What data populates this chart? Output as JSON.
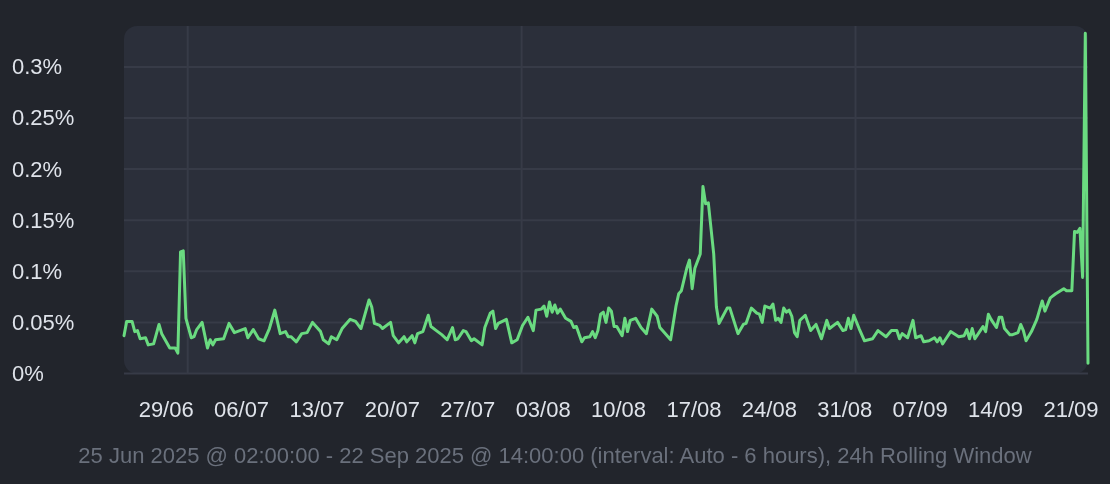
{
  "chart_data": {
    "type": "line",
    "xlabel": "25 Jun 2025 @ 02:00:00 - 22 Sep 2025 @ 14:00:00 (interval: Auto - 6 hours), 24h Rolling Window",
    "xlim": [
      "2025-06-25T02:00",
      "2025-09-22T14:00"
    ],
    "xticks": [
      {
        "value": "2025-06-29",
        "label": "29/06"
      },
      {
        "value": "2025-07-01",
        "label": null
      },
      {
        "value": "2025-07-06",
        "label": "06/07"
      },
      {
        "value": "2025-07-13",
        "label": "13/07"
      },
      {
        "value": "2025-07-20",
        "label": "20/07"
      },
      {
        "value": "2025-07-27",
        "label": "27/07"
      },
      {
        "value": "2025-08-01",
        "label": null
      },
      {
        "value": "2025-08-03",
        "label": "03/08"
      },
      {
        "value": "2025-08-10",
        "label": "10/08"
      },
      {
        "value": "2025-08-17",
        "label": "17/08"
      },
      {
        "value": "2025-08-24",
        "label": "24/08"
      },
      {
        "value": "2025-08-31",
        "label": "31/08"
      },
      {
        "value": "2025-09-01",
        "label": null
      },
      {
        "value": "2025-09-07",
        "label": "07/09"
      },
      {
        "value": "2025-09-14",
        "label": "14/09"
      },
      {
        "value": "2025-09-21",
        "label": "21/09"
      }
    ],
    "ylim": [
      0,
      0.34
    ],
    "yticks": [
      {
        "value": 0,
        "label": "0%"
      },
      {
        "value": 0.05,
        "label": "0.05%"
      },
      {
        "value": 0.1,
        "label": "0.1%"
      },
      {
        "value": 0.15,
        "label": "0.15%"
      },
      {
        "value": 0.2,
        "label": "0.2%"
      },
      {
        "value": 0.25,
        "label": "0.25%"
      },
      {
        "value": 0.3,
        "label": "0.3%"
      }
    ],
    "grid": true,
    "series": [
      {
        "color": "#6adb80",
        "x": [
          "2025-06-25T02:00",
          "2025-06-25T08:00",
          "2025-06-25T20:00",
          "2025-06-26T02:00",
          "2025-06-26T08:00",
          "2025-06-26T14:00",
          "2025-06-27T02:00",
          "2025-06-27T08:00",
          "2025-06-27T20:00",
          "2025-06-28T08:00",
          "2025-06-28T14:00",
          "2025-06-29T08:00",
          "2025-06-29T20:00",
          "2025-06-30T02:00",
          "2025-06-30T08:00",
          "2025-06-30T14:00",
          "2025-06-30T20:00",
          "2025-07-01T08:00",
          "2025-07-01T14:00",
          "2025-07-01T20:00",
          "2025-07-02T08:00",
          "2025-07-02T20:00",
          "2025-07-03T02:00",
          "2025-07-03T08:00",
          "2025-07-03T14:00",
          "2025-07-04T08:00",
          "2025-07-04T20:00",
          "2025-07-05T08:00",
          "2025-07-06T08:00",
          "2025-07-06T14:00",
          "2025-07-07T02:00",
          "2025-07-07T14:00",
          "2025-07-08T02:00",
          "2025-07-08T14:00",
          "2025-07-09T02:00",
          "2025-07-09T14:00",
          "2025-07-10T02:00",
          "2025-07-10T08:00",
          "2025-07-10T14:00",
          "2025-07-11T02:00",
          "2025-07-11T14:00",
          "2025-07-12T02:00",
          "2025-07-12T14:00",
          "2025-07-13T08:00",
          "2025-07-13T14:00",
          "2025-07-14T02:00",
          "2025-07-14T08:00",
          "2025-07-14T20:00",
          "2025-07-15T08:00",
          "2025-07-16T02:00",
          "2025-07-16T14:00",
          "2025-07-17T02:00",
          "2025-07-17T20:00",
          "2025-07-18T02:00",
          "2025-07-18T08:00",
          "2025-07-18T20:00",
          "2025-07-19T02:00",
          "2025-07-19T20:00",
          "2025-07-20T02:00",
          "2025-07-20T14:00",
          "2025-07-21T02:00",
          "2025-07-21T08:00",
          "2025-07-21T20:00",
          "2025-07-22T02:00",
          "2025-07-22T08:00",
          "2025-07-22T20:00",
          "2025-07-23T08:00",
          "2025-07-23T14:00",
          "2025-07-24T02:00",
          "2025-07-24T14:00",
          "2025-07-25T02:00",
          "2025-07-25T14:00",
          "2025-07-25T20:00",
          "2025-07-26T02:00",
          "2025-07-26T14:00",
          "2025-07-26T20:00",
          "2025-07-27T08:00",
          "2025-07-27T14:00",
          "2025-07-28T08:00",
          "2025-07-28T14:00",
          "2025-07-29T02:00",
          "2025-07-29T08:00",
          "2025-07-29T14:00",
          "2025-07-29T20:00",
          "2025-07-30T14:00",
          "2025-07-31T02:00",
          "2025-07-31T14:00",
          "2025-08-01T02:00",
          "2025-08-01T14:00",
          "2025-08-02T02:00",
          "2025-08-02T08:00",
          "2025-08-02T20:00",
          "2025-08-03T02:00",
          "2025-08-03T08:00",
          "2025-08-03T14:00",
          "2025-08-03T20:00",
          "2025-08-04T02:00",
          "2025-08-04T08:00",
          "2025-08-04T14:00",
          "2025-08-05T02:00",
          "2025-08-05T14:00",
          "2025-08-05T20:00",
          "2025-08-06T02:00",
          "2025-08-06T14:00",
          "2025-08-06T20:00",
          "2025-08-07T08:00",
          "2025-08-07T14:00",
          "2025-08-07T20:00",
          "2025-08-08T02:00",
          "2025-08-08T08:00",
          "2025-08-08T14:00",
          "2025-08-08T20:00",
          "2025-08-09T02:00",
          "2025-08-09T08:00",
          "2025-08-09T14:00",
          "2025-08-09T20:00",
          "2025-08-10T08:00",
          "2025-08-10T14:00",
          "2025-08-10T20:00",
          "2025-08-11T02:00",
          "2025-08-11T14:00",
          "2025-08-12T02:00",
          "2025-08-12T14:00",
          "2025-08-13T02:00",
          "2025-08-13T14:00",
          "2025-08-13T20:00",
          "2025-08-14T02:00",
          "2025-08-14T20:00",
          "2025-08-15T08:00",
          "2025-08-15T14:00",
          "2025-08-15T20:00",
          "2025-08-16T08:00",
          "2025-08-16T14:00",
          "2025-08-16T20:00",
          "2025-08-17T02:00",
          "2025-08-17T14:00",
          "2025-08-17T20:00",
          "2025-08-18T02:00",
          "2025-08-18T08:00",
          "2025-08-18T20:00",
          "2025-08-19T02:00",
          "2025-08-19T08:00",
          "2025-08-19T14:00",
          "2025-08-20T02:00",
          "2025-08-20T08:00",
          "2025-08-21T02:00",
          "2025-08-21T14:00",
          "2025-08-21T20:00",
          "2025-08-22T08:00",
          "2025-08-22T20:00",
          "2025-08-23T02:00",
          "2025-08-23T08:00",
          "2025-08-23T14:00",
          "2025-08-24T02:00",
          "2025-08-24T08:00",
          "2025-08-24T14:00",
          "2025-08-24T20:00",
          "2025-08-25T02:00",
          "2025-08-25T08:00",
          "2025-08-25T14:00",
          "2025-08-25T20:00",
          "2025-08-26T02:00",
          "2025-08-26T08:00",
          "2025-08-26T14:00",
          "2025-08-26T20:00",
          "2025-08-27T08:00",
          "2025-08-27T20:00",
          "2025-08-28T08:00",
          "2025-08-28T20:00",
          "2025-08-29T08:00",
          "2025-08-29T14:00",
          "2025-08-30T08:00",
          "2025-08-30T20:00",
          "2025-08-31T02:00",
          "2025-08-31T08:00",
          "2025-08-31T14:00",
          "2025-08-31T20:00",
          "2025-09-01T08:00",
          "2025-09-01T20:00",
          "2025-09-02T14:00",
          "2025-09-03T02:00",
          "2025-09-03T20:00",
          "2025-09-04T08:00",
          "2025-09-04T20:00",
          "2025-09-05T02:00",
          "2025-09-05T08:00",
          "2025-09-05T20:00",
          "2025-09-06T08:00",
          "2025-09-06T14:00",
          "2025-09-07T02:00",
          "2025-09-07T08:00",
          "2025-09-07T20:00",
          "2025-09-08T08:00",
          "2025-09-08T14:00",
          "2025-09-08T20:00",
          "2025-09-09T02:00",
          "2025-09-09T08:00",
          "2025-09-09T20:00",
          "2025-09-10T14:00",
          "2025-09-11T02:00",
          "2025-09-11T08:00",
          "2025-09-11T14:00",
          "2025-09-11T20:00",
          "2025-09-12T02:00",
          "2025-09-12T14:00",
          "2025-09-12T20:00",
          "2025-09-13T02:00",
          "2025-09-13T08:00",
          "2025-09-13T14:00",
          "2025-09-14T02:00",
          "2025-09-14T08:00",
          "2025-09-14T14:00",
          "2025-09-14T20:00",
          "2025-09-15T08:00",
          "2025-09-15T14:00",
          "2025-09-16T02:00",
          "2025-09-16T08:00",
          "2025-09-16T14:00",
          "2025-09-16T20:00",
          "2025-09-17T08:00",
          "2025-09-17T20:00",
          "2025-09-18T08:00",
          "2025-09-18T14:00",
          "2025-09-19T02:00",
          "2025-09-19T14:00",
          "2025-09-20T08:00",
          "2025-09-20T14:00",
          "2025-09-21T02:00",
          "2025-09-21T08:00",
          "2025-09-21T14:00",
          "2025-09-21T20:00",
          "2025-09-22T02:00",
          "2025-09-22T08:00",
          "2025-09-22T14:00"
        ],
        "values": [
          0.037,
          0.051,
          0.051,
          0.041,
          0.042,
          0.034,
          0.035,
          0.028,
          0.029,
          0.048,
          0.039,
          0.025,
          0.025,
          0.02,
          0.119,
          0.12,
          0.054,
          0.035,
          0.036,
          0.043,
          0.05,
          0.025,
          0.033,
          0.028,
          0.033,
          0.034,
          0.049,
          0.04,
          0.044,
          0.035,
          0.043,
          0.034,
          0.032,
          0.044,
          0.062,
          0.039,
          0.041,
          0.036,
          0.036,
          0.031,
          0.039,
          0.04,
          0.05,
          0.041,
          0.033,
          0.029,
          0.036,
          0.033,
          0.044,
          0.053,
          0.051,
          0.044,
          0.072,
          0.065,
          0.049,
          0.047,
          0.044,
          0.05,
          0.037,
          0.03,
          0.036,
          0.031,
          0.037,
          0.03,
          0.039,
          0.041,
          0.057,
          0.046,
          0.042,
          0.038,
          0.033,
          0.045,
          0.033,
          0.034,
          0.042,
          0.041,
          0.032,
          0.034,
          0.028,
          0.045,
          0.059,
          0.061,
          0.044,
          0.049,
          0.053,
          0.03,
          0.033,
          0.047,
          0.055,
          0.042,
          0.062,
          0.063,
          0.066,
          0.056,
          0.07,
          0.06,
          0.067,
          0.059,
          0.063,
          0.054,
          0.051,
          0.045,
          0.046,
          0.031,
          0.035,
          0.036,
          0.041,
          0.035,
          0.042,
          0.058,
          0.06,
          0.05,
          0.064,
          0.061,
          0.046,
          0.046,
          0.037,
          0.054,
          0.041,
          0.052,
          0.054,
          0.045,
          0.039,
          0.063,
          0.056,
          0.045,
          0.042,
          0.033,
          0.066,
          0.078,
          0.081,
          0.103,
          0.111,
          0.083,
          0.103,
          0.117,
          0.183,
          0.166,
          0.167,
          0.117,
          0.065,
          0.049,
          0.054,
          0.064,
          0.064,
          0.039,
          0.048,
          0.049,
          0.064,
          0.059,
          0.058,
          0.05,
          0.066,
          0.064,
          0.068,
          0.052,
          0.054,
          0.05,
          0.064,
          0.06,
          0.062,
          0.056,
          0.04,
          0.036,
          0.052,
          0.057,
          0.042,
          0.048,
          0.034,
          0.052,
          0.044,
          0.05,
          0.042,
          0.043,
          0.054,
          0.044,
          0.057,
          0.044,
          0.032,
          0.034,
          0.042,
          0.036,
          0.042,
          0.042,
          0.034,
          0.039,
          0.035,
          0.052,
          0.035,
          0.037,
          0.031,
          0.032,
          0.035,
          0.031,
          0.035,
          0.029,
          0.033,
          0.041,
          0.036,
          0.037,
          0.043,
          0.034,
          0.044,
          0.034,
          0.042,
          0.046,
          0.041,
          0.058,
          0.053,
          0.045,
          0.055,
          0.055,
          0.044,
          0.038,
          0.038,
          0.04,
          0.048,
          0.042,
          0.032,
          0.041,
          0.053,
          0.071,
          0.061,
          0.074,
          0.078,
          0.083,
          0.081,
          0.081,
          0.139,
          0.138,
          0.142,
          0.094,
          0.333,
          0.01
        ]
      }
    ]
  }
}
